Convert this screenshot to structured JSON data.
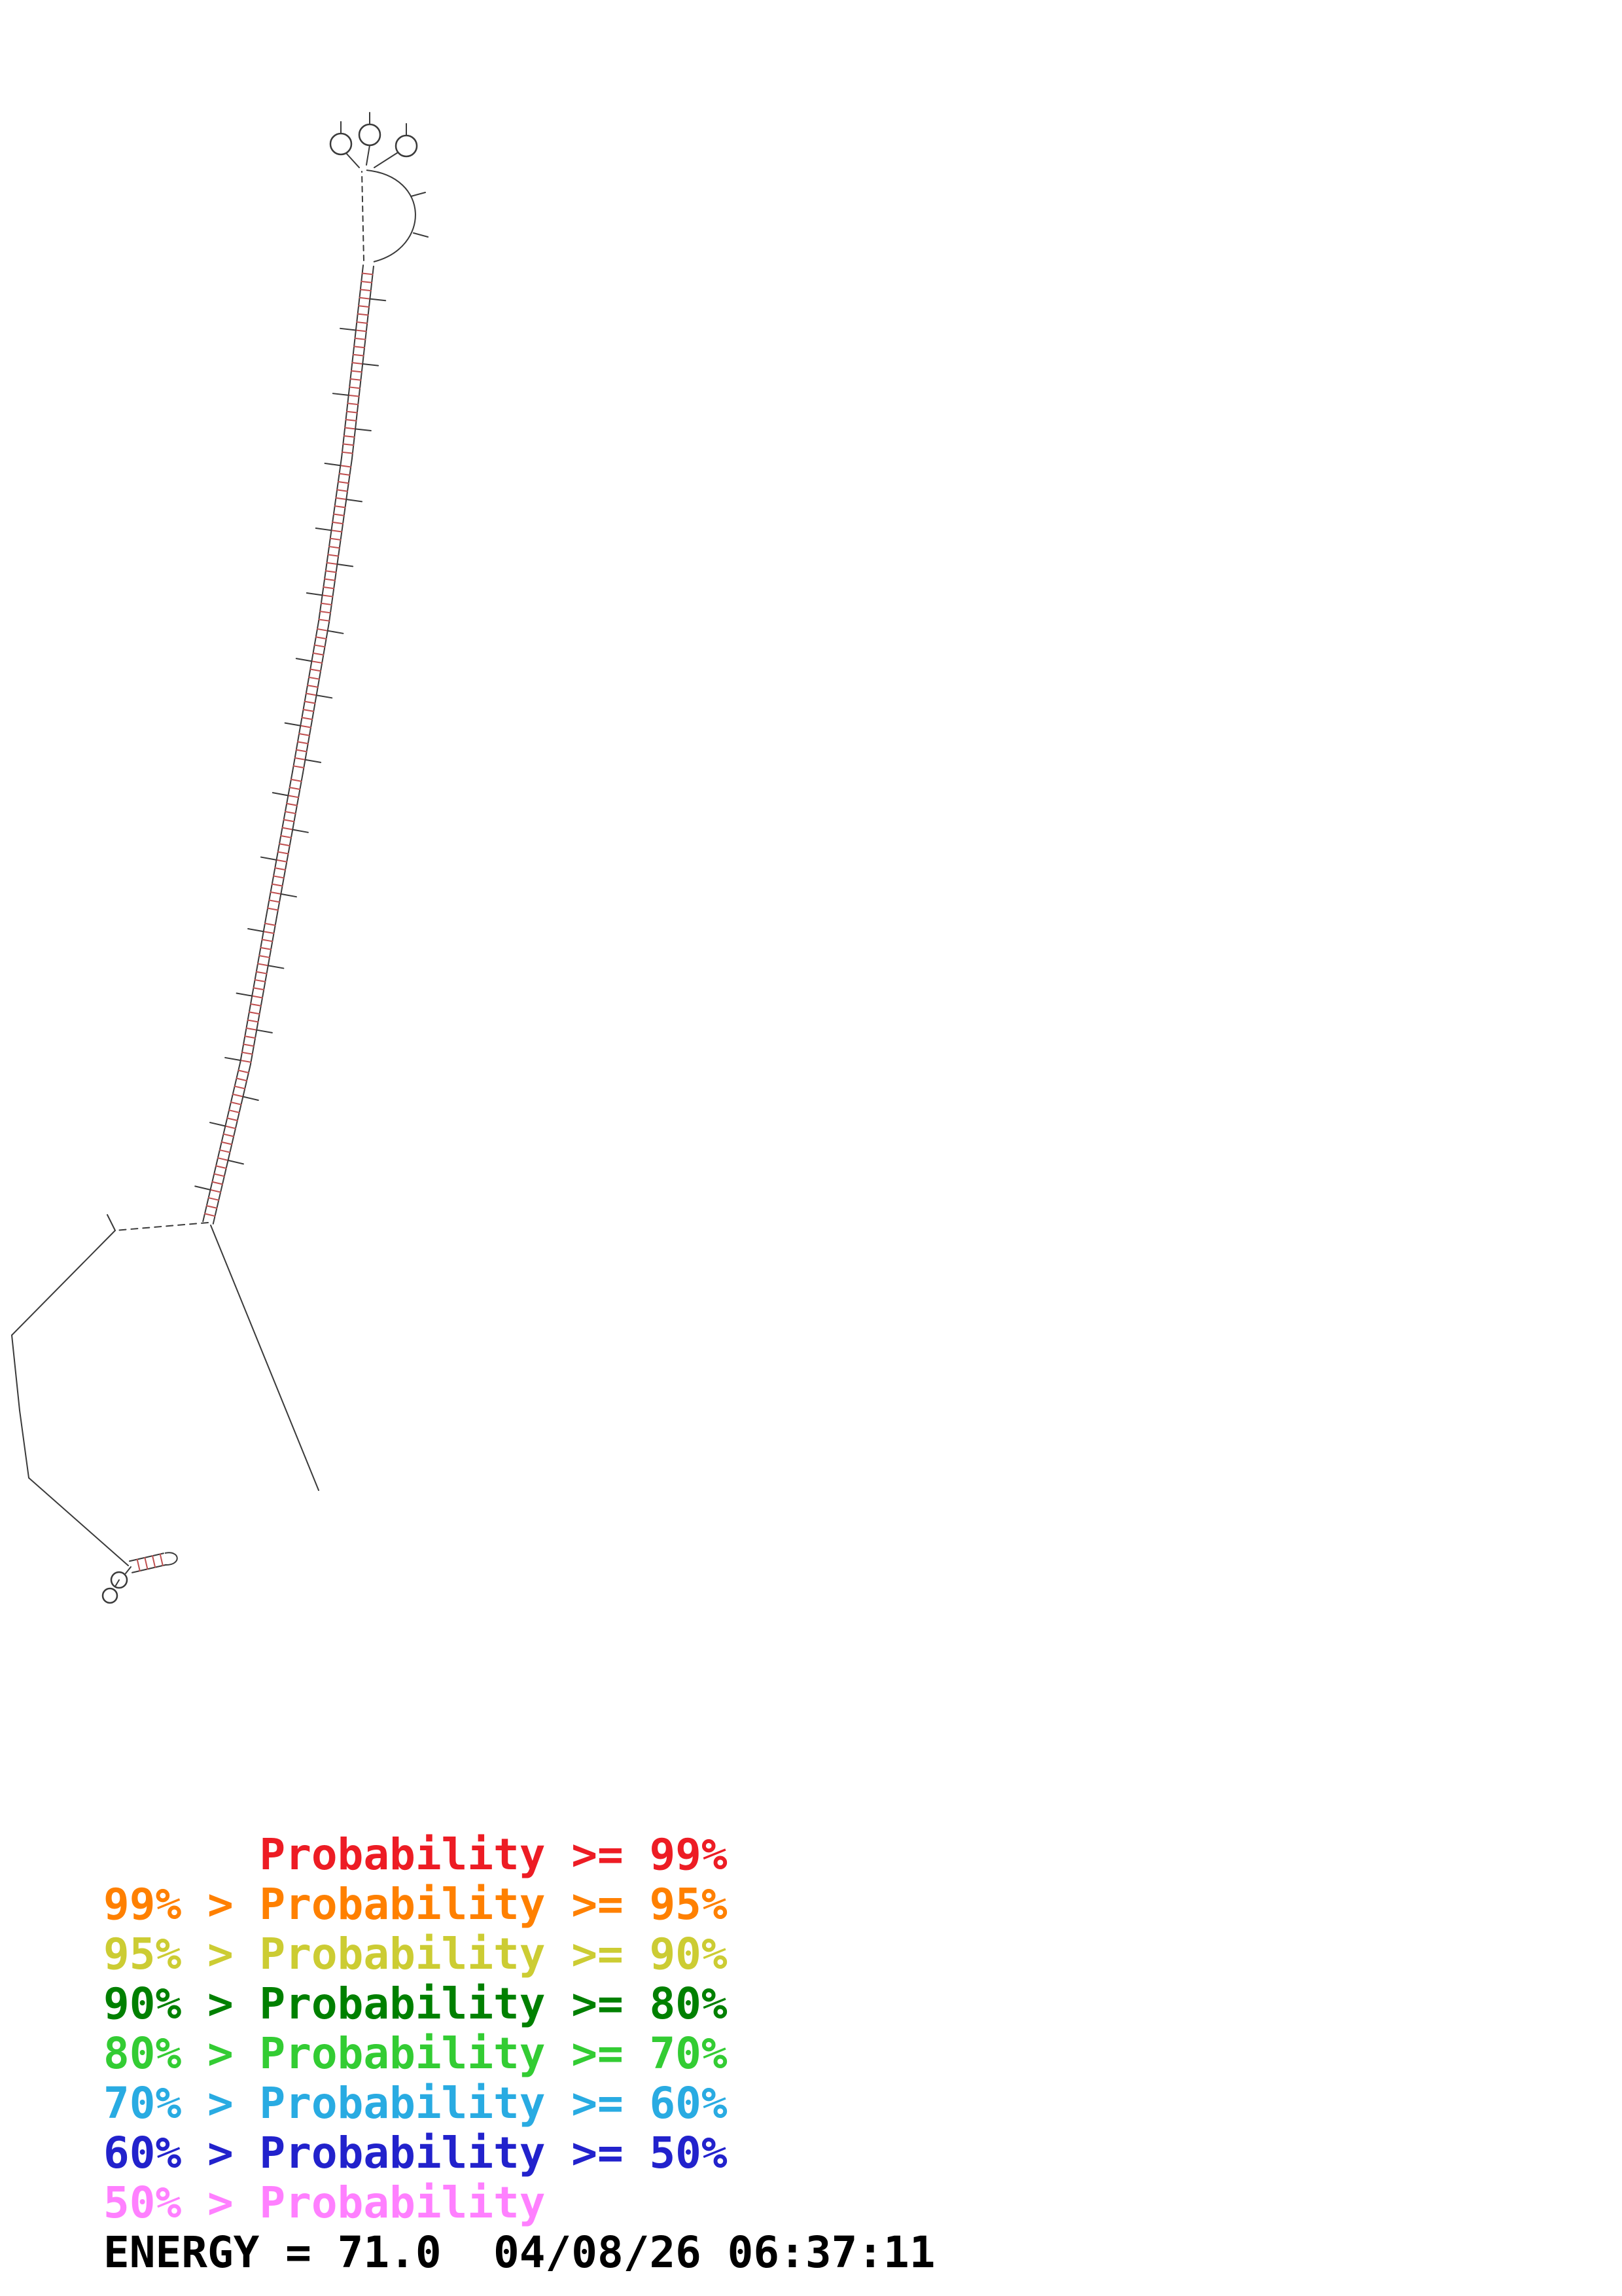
{
  "legend": {
    "items": [
      {
        "text": "      Probability >= 99%",
        "color": "#ed1c24"
      },
      {
        "text": "99% > Probability >= 95%",
        "color": "#ff8000"
      },
      {
        "text": "95% > Probability >= 90%",
        "color": "#cccc33"
      },
      {
        "text": "90% > Probability >= 80%",
        "color": "#008000"
      },
      {
        "text": "80% > Probability >= 70%",
        "color": "#33cc33"
      },
      {
        "text": "70% > Probability >= 60%",
        "color": "#29abe2"
      },
      {
        "text": "60% > Probability >= 50%",
        "color": "#2222cc"
      },
      {
        "text": "50% > Probability",
        "color": "#ff80ff"
      }
    ]
  },
  "footer": {
    "energy_text": "ENERGY = 71.0  04/08/26 06:37:11"
  },
  "structure": {
    "backbone_color": "#3a3a3a",
    "pair_color": "#c05050",
    "circle_fill": "#ffffff"
  }
}
